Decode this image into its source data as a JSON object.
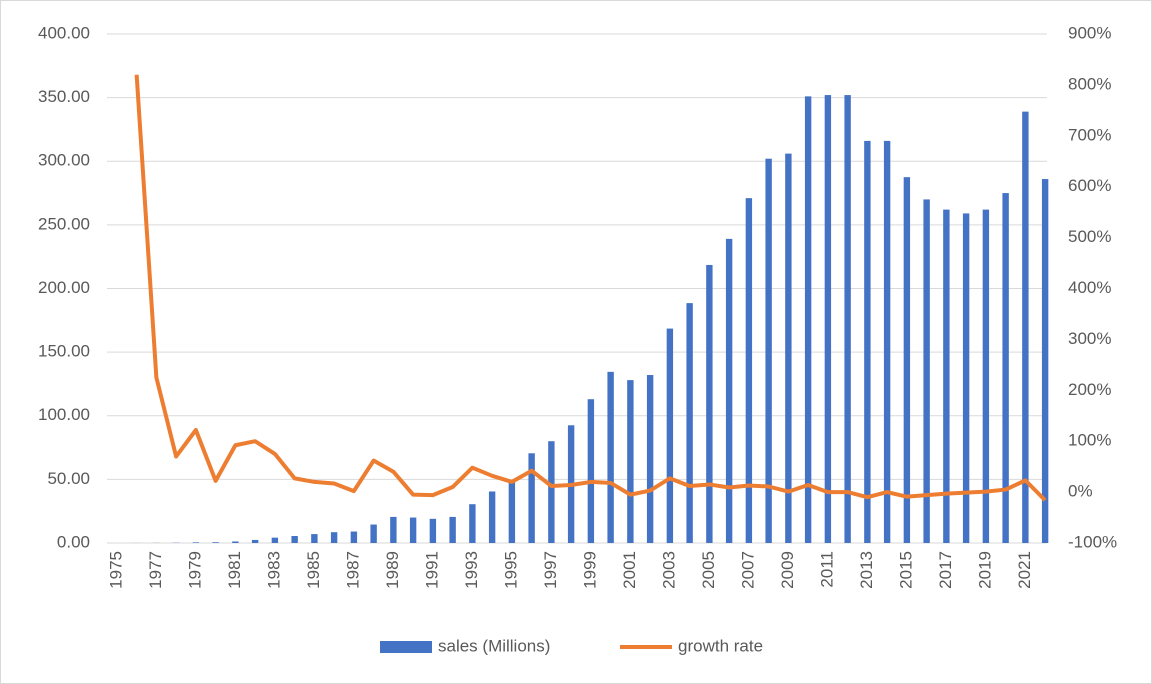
{
  "chart_data": {
    "type": "bar",
    "categories": [
      "1975",
      null,
      "1977",
      null,
      "1979",
      null,
      "1981",
      null,
      "1983",
      null,
      "1985",
      null,
      "1987",
      null,
      "1989",
      null,
      "1991",
      null,
      "1993",
      null,
      "1995",
      null,
      "1997",
      null,
      "1999",
      null,
      "2001",
      null,
      "2003",
      null,
      "2005",
      null,
      "2007",
      null,
      "2009",
      null,
      "2011",
      null,
      "2013",
      null,
      "2015",
      null,
      "2017",
      null,
      "2019",
      null,
      "2021",
      null
    ],
    "series": [
      {
        "name": "sales (Millions)",
        "type": "bar",
        "color": "#4472c4",
        "values": [
          0,
          0.05,
          0.1,
          0.2,
          0.5,
          0.6,
          1.2,
          2.4,
          4.2,
          5.5,
          7,
          8.5,
          9,
          14.5,
          20.5,
          20,
          19,
          20.5,
          30.5,
          40.5,
          48,
          70.5,
          80,
          92.5,
          113,
          134.5,
          128,
          132,
          168.5,
          188.5,
          218.5,
          239,
          271,
          302,
          306,
          351,
          352,
          352,
          316,
          316,
          287.5,
          270,
          262,
          259,
          262,
          275,
          339,
          286
        ]
      },
      {
        "name": "growth rate",
        "type": "line",
        "axis": "y2",
        "color": "#ed7d31",
        "values": [
          null,
          820,
          225,
          70,
          122,
          22,
          92,
          100,
          75,
          27,
          20,
          17,
          2,
          62,
          40,
          -5,
          -6,
          10,
          48,
          32,
          20,
          42,
          12,
          14,
          20,
          18,
          -5,
          3,
          27,
          12,
          15,
          9,
          13,
          11,
          1,
          14,
          0,
          0,
          -10,
          0,
          -9,
          -6,
          -3,
          -1,
          1,
          5,
          23,
          -16
        ]
      }
    ],
    "ylim": [
      0,
      400
    ],
    "yticks": [
      {
        "value": 0,
        "label": "0.00"
      },
      {
        "value": 50,
        "label": "50.00"
      },
      {
        "value": 100,
        "label": "100.00"
      },
      {
        "value": 150,
        "label": "150.00"
      },
      {
        "value": 200,
        "label": "200.00"
      },
      {
        "value": 250,
        "label": "250.00"
      },
      {
        "value": 300,
        "label": "300.00"
      },
      {
        "value": 350,
        "label": "350.00"
      },
      {
        "value": 400,
        "label": "400.00"
      }
    ],
    "y2lim": [
      -100,
      900
    ],
    "y2ticks": [
      {
        "value": -100,
        "label": "-100%"
      },
      {
        "value": 0,
        "label": "0%"
      },
      {
        "value": 100,
        "label": "100%"
      },
      {
        "value": 200,
        "label": "200%"
      },
      {
        "value": 300,
        "label": "300%"
      },
      {
        "value": 400,
        "label": "400%"
      },
      {
        "value": 500,
        "label": "500%"
      },
      {
        "value": 600,
        "label": "600%"
      },
      {
        "value": 700,
        "label": "700%"
      },
      {
        "value": 800,
        "label": "800%"
      },
      {
        "value": 900,
        "label": "900%"
      }
    ],
    "grid": true,
    "legend": "bottom"
  }
}
